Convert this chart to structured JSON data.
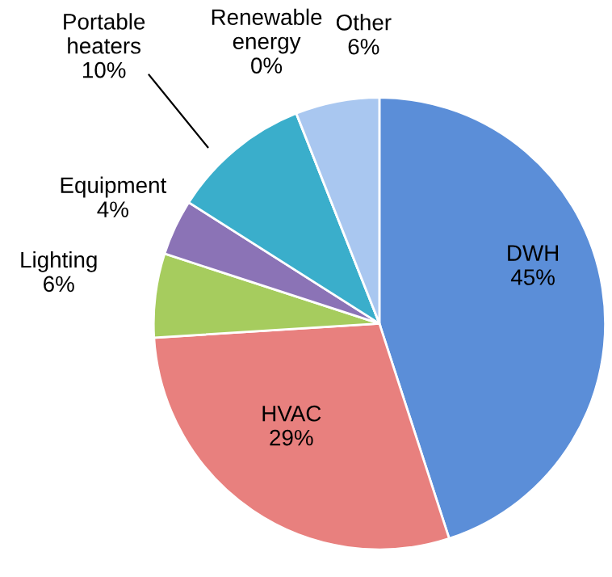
{
  "chart_data": {
    "type": "pie",
    "categories": [
      "DWH",
      "HVAC",
      "Lighting",
      "Equipment",
      "Portable heaters",
      "Renewable energy",
      "Other"
    ],
    "values": [
      45,
      29,
      6,
      4,
      10,
      0,
      6
    ],
    "colors": [
      "#5b8ed8",
      "#e8807e",
      "#a6cc5e",
      "#8b73b6",
      "#3aaecb",
      "#f5a35a",
      "#a9c7f0"
    ],
    "value_labels": [
      "45%",
      "29%",
      "6%",
      "4%",
      "10%",
      "0%",
      "6%"
    ]
  }
}
